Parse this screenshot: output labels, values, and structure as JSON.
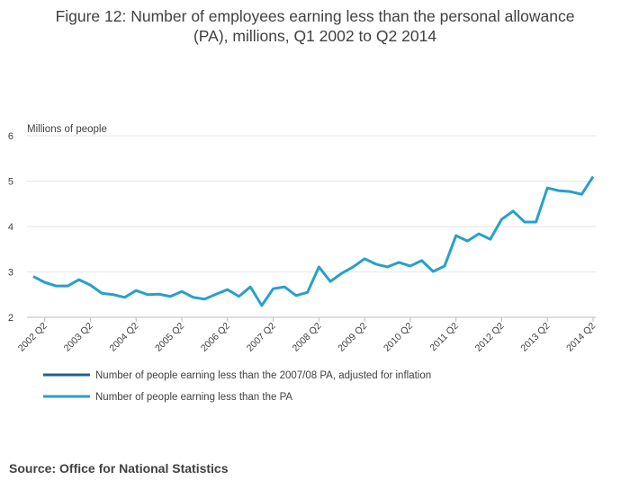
{
  "chart_data": {
    "type": "line",
    "title": [
      "Figure 12: Number of employees earning less than the personal allowance",
      "(PA), millions, Q1 2002 to Q2 2014"
    ],
    "y_label": "Millions of people",
    "source": "Source: Office for National Statistics",
    "categories": [
      null,
      "2002 Q2",
      null,
      null,
      null,
      "2003 Q2",
      null,
      null,
      null,
      "2004 Q2",
      null,
      null,
      null,
      "2005 Q2",
      null,
      null,
      null,
      "2006 Q2",
      null,
      null,
      null,
      "2007 Q2",
      null,
      null,
      null,
      "2008 Q2",
      null,
      null,
      null,
      "2009 Q2",
      null,
      null,
      null,
      "2010 Q2",
      null,
      null,
      null,
      "2011 Q2",
      null,
      null,
      null,
      "2012 Q2",
      null,
      null,
      null,
      "2013 Q2",
      null,
      null,
      null,
      "2014 Q2"
    ],
    "series": [
      {
        "name": "Number of people earning less than the 2007/08 PA, adjusted for inflation",
        "color": "#206095",
        "values": [
          null,
          null,
          null,
          null,
          null,
          null,
          null,
          null,
          null,
          null,
          null,
          null,
          null,
          null,
          null,
          null,
          null,
          null,
          null,
          null,
          null,
          null,
          null,
          null,
          null,
          null,
          null,
          null,
          null,
          null,
          null,
          null,
          null,
          null,
          null,
          null,
          null,
          null,
          null,
          null,
          null,
          null,
          null,
          null,
          null,
          null,
          null,
          null,
          null,
          null
        ]
      },
      {
        "name": "Number of people earning less than the PA",
        "color": "#27a0cc",
        "values": [
          2.9,
          2.77,
          2.69,
          2.69,
          2.83,
          2.71,
          2.53,
          2.5,
          2.44,
          2.59,
          2.5,
          2.51,
          2.46,
          2.57,
          2.44,
          2.4,
          2.51,
          2.61,
          2.46,
          2.67,
          2.26,
          2.63,
          2.67,
          2.48,
          2.55,
          3.11,
          2.79,
          2.97,
          3.11,
          3.29,
          3.17,
          3.11,
          3.21,
          3.13,
          3.25,
          3.01,
          3.13,
          3.8,
          3.68,
          3.84,
          3.72,
          4.16,
          4.34,
          4.1,
          4.1,
          4.85,
          4.79,
          4.77,
          4.71,
          5.1
        ]
      }
    ],
    "ylim": [
      2,
      6
    ],
    "yticks": [
      2,
      3,
      4,
      5,
      6
    ],
    "grid": true
  }
}
